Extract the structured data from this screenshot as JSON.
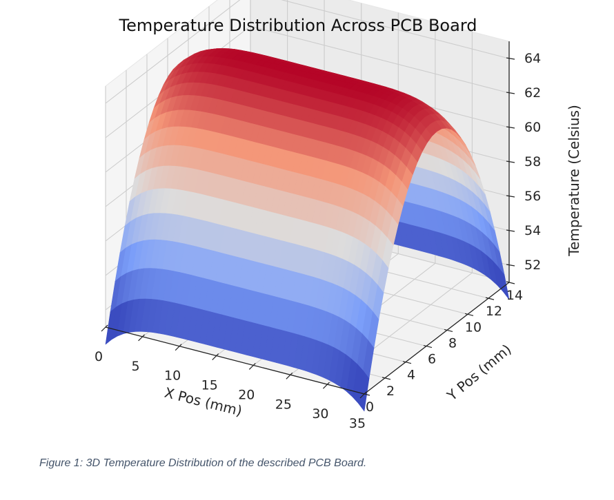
{
  "figure": {
    "caption": "Figure 1: 3D Temperature Distribution of the described PCB Board."
  },
  "chart_data": {
    "type": "surface",
    "title": "Temperature Distribution Across PCB Board",
    "xlabel": "X Pos (mm)",
    "ylabel": "Y Pos (mm)",
    "zlabel": "Temperature (Celsius)",
    "colormap": "coolwarm",
    "grid": true,
    "xlim": [
      0,
      35
    ],
    "ylim": [
      0,
      14
    ],
    "zlim": [
      51,
      65
    ],
    "x_ticks": [
      0,
      5,
      10,
      15,
      20,
      25,
      30,
      35
    ],
    "y_ticks": [
      0,
      2,
      4,
      6,
      8,
      10,
      12,
      14
    ],
    "z_ticks": [
      52,
      54,
      56,
      58,
      60,
      62,
      64
    ],
    "x_tick_labels": [
      "0",
      "5",
      "10",
      "15",
      "20",
      "25",
      "30",
      "35"
    ],
    "y_tick_labels": [
      "0",
      "2",
      "4",
      "6",
      "8",
      "10",
      "12",
      "14"
    ],
    "z_tick_labels": [
      "52",
      "54",
      "56",
      "58",
      "60",
      "62",
      "64"
    ],
    "surface": {
      "x": [
        0,
        35
      ],
      "y": [
        0,
        14
      ],
      "peak_temperature": 64.5,
      "peak_at_y": 7,
      "edge_temperature_y_ends": 51.5,
      "edge_drop_x_ends": 1.5
    }
  }
}
